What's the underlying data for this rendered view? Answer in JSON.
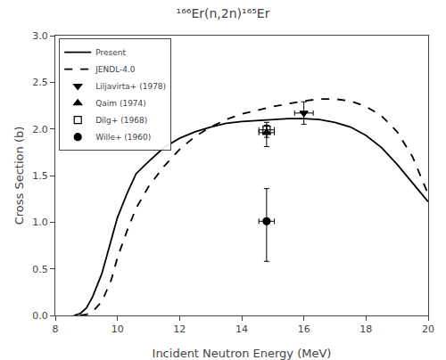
{
  "chart_data": {
    "type": "line",
    "title": "¹⁶⁶Er(n,2n)¹⁶⁵Er",
    "xlabel": "Incident Neutron Energy (MeV)",
    "ylabel": "Cross Section (b)",
    "xlim": [
      8,
      20
    ],
    "ylim": [
      0.0,
      3.0
    ],
    "xticks": [
      8,
      10,
      12,
      14,
      16,
      18,
      20
    ],
    "yticks": [
      {
        "value": 0.0,
        "label": "0.0"
      },
      0.5,
      {
        "value": 1.0,
        "label": "1.0"
      },
      1.5,
      {
        "value": 2.0,
        "label": "2.0"
      },
      2.5,
      {
        "value": 3.0,
        "label": "3.0"
      }
    ],
    "grid": false,
    "legend": "upper left",
    "series": [
      {
        "name": "Present",
        "type": "line",
        "line_style": "solid",
        "color": "#000000",
        "x": [
          8.6,
          8.8,
          9.0,
          9.2,
          9.5,
          9.8,
          10.0,
          10.3,
          10.6,
          11.0,
          11.5,
          12.0,
          12.5,
          13.0,
          13.5,
          14.0,
          14.5,
          15.0,
          15.5,
          16.0,
          16.5,
          17.0,
          17.5,
          18.0,
          18.5,
          19.0,
          19.5,
          20.0
        ],
        "values": [
          0.0,
          0.02,
          0.08,
          0.2,
          0.45,
          0.8,
          1.05,
          1.3,
          1.52,
          1.65,
          1.8,
          1.9,
          1.97,
          2.02,
          2.06,
          2.08,
          2.09,
          2.1,
          2.11,
          2.11,
          2.1,
          2.07,
          2.02,
          1.93,
          1.8,
          1.62,
          1.42,
          1.22
        ]
      },
      {
        "name": "JENDL-4.0",
        "type": "line",
        "line_style": "dashed",
        "color": "#000000",
        "x": [
          8.8,
          9.0,
          9.2,
          9.5,
          9.8,
          10.0,
          10.3,
          10.6,
          11.0,
          11.5,
          12.0,
          12.5,
          13.0,
          13.5,
          14.0,
          14.5,
          15.0,
          15.5,
          16.0,
          16.5,
          17.0,
          17.5,
          18.0,
          18.5,
          19.0,
          19.5,
          20.0
        ],
        "values": [
          0.0,
          0.01,
          0.04,
          0.15,
          0.38,
          0.62,
          0.9,
          1.15,
          1.38,
          1.6,
          1.78,
          1.92,
          2.02,
          2.1,
          2.16,
          2.2,
          2.24,
          2.27,
          2.3,
          2.32,
          2.32,
          2.3,
          2.24,
          2.14,
          1.97,
          1.7,
          1.3
        ]
      },
      {
        "name": "Liljavirta+ (1978)",
        "type": "scatter",
        "marker": "triangle-down",
        "color": "#000000",
        "x": [
          16.0
        ],
        "values": [
          2.17
        ],
        "xerr": [
          0.3
        ],
        "yerr_up": [
          0.12
        ],
        "yerr_down": [
          0.12
        ]
      },
      {
        "name": "Qaim (1974)",
        "type": "scatter",
        "marker": "triangle-up",
        "color": "#000000",
        "x": [
          14.8
        ],
        "values": [
          1.96
        ],
        "xerr": [
          0.25
        ],
        "yerr_up": [
          0.08
        ],
        "yerr_down": [
          0.15
        ]
      },
      {
        "name": "Dilg+ (1968)",
        "type": "scatter",
        "marker": "square-open",
        "color": "#000000",
        "x": [
          14.8
        ],
        "values": [
          1.99
        ],
        "xerr": [
          0.25
        ],
        "yerr_up": [
          0.08
        ],
        "yerr_down": [
          0.08
        ]
      },
      {
        "name": "Wille+ (1960)",
        "type": "scatter",
        "marker": "circle",
        "color": "#000000",
        "x": [
          14.8
        ],
        "values": [
          1.01
        ],
        "xerr": [
          0.25
        ],
        "yerr_up": [
          0.35
        ],
        "yerr_down": [
          0.43
        ]
      }
    ]
  }
}
